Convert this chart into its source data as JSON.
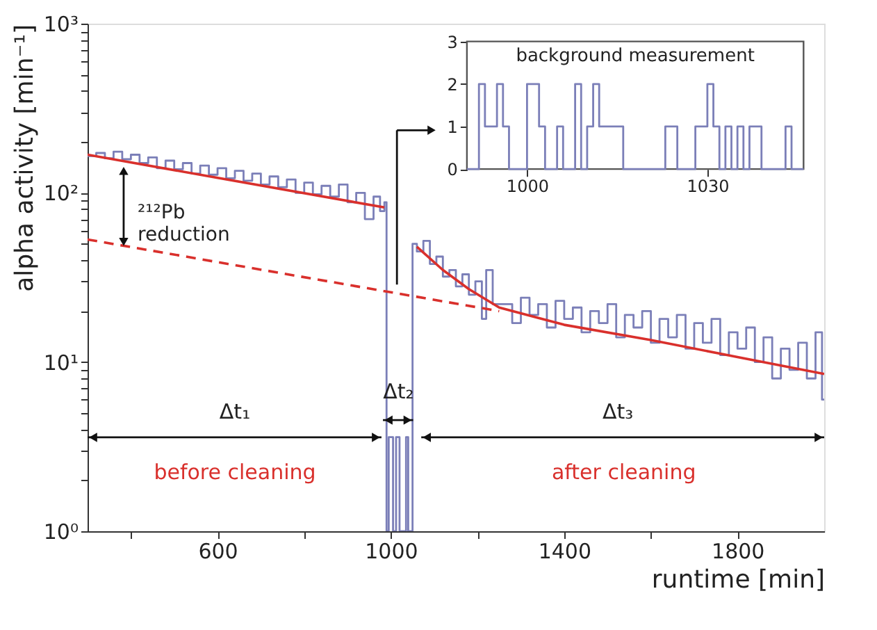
{
  "chart_data": [
    {
      "type": "step",
      "xlabel": "runtime [min]",
      "ylabel": "alpha activity [min⁻¹]",
      "log": "y",
      "grid": false,
      "legend": false,
      "xlim": [
        300,
        2000
      ],
      "xticks": [
        {
          "value": 400,
          "label": null
        },
        600,
        {
          "value": 800,
          "label": null
        },
        1000,
        {
          "value": 1200,
          "label": null
        },
        1400,
        {
          "value": 1600,
          "label": null
        },
        1800
      ],
      "ylim": [
        1,
        1000
      ],
      "yticks": [
        {
          "value": 1,
          "label": "10⁰"
        },
        {
          "value": 2,
          "label": null
        },
        {
          "value": 3,
          "label": null
        },
        {
          "value": 4,
          "label": null
        },
        {
          "value": 5,
          "label": null
        },
        {
          "value": 6,
          "label": null
        },
        {
          "value": 7,
          "label": null
        },
        {
          "value": 8,
          "label": null
        },
        {
          "value": 9,
          "label": null
        },
        {
          "value": 10,
          "label": "10¹"
        },
        {
          "value": 20,
          "label": null
        },
        {
          "value": 30,
          "label": null
        },
        {
          "value": 40,
          "label": null
        },
        {
          "value": 50,
          "label": null
        },
        {
          "value": 60,
          "label": null
        },
        {
          "value": 70,
          "label": null
        },
        {
          "value": 80,
          "label": null
        },
        {
          "value": 90,
          "label": null
        },
        {
          "value": 100,
          "label": "10²"
        },
        {
          "value": 200,
          "label": null
        },
        {
          "value": 300,
          "label": null
        },
        {
          "value": 400,
          "label": null
        },
        {
          "value": 500,
          "label": null
        },
        {
          "value": 600,
          "label": null
        },
        {
          "value": 700,
          "label": null
        },
        {
          "value": 800,
          "label": null
        },
        {
          "value": 900,
          "label": null
        },
        {
          "value": 1000,
          "label": "10³"
        }
      ],
      "series": [
        {
          "type": "step",
          "color": "#7b7fb8",
          "x": [
            300,
            320,
            340,
            360,
            380,
            400,
            420,
            440,
            460,
            480,
            500,
            520,
            540,
            560,
            580,
            600,
            620,
            640,
            660,
            680,
            700,
            720,
            740,
            760,
            780,
            800,
            820,
            840,
            860,
            880,
            900,
            920,
            940,
            960,
            975,
            985,
            990,
            995,
            1005,
            1012,
            1020,
            1035,
            1040,
            1050,
            1060,
            1075,
            1090,
            1105,
            1120,
            1135,
            1150,
            1165,
            1180,
            1195,
            1210,
            1220,
            1235,
            1260,
            1280,
            1300,
            1320,
            1340,
            1360,
            1380,
            1400,
            1420,
            1440,
            1460,
            1480,
            1500,
            1520,
            1540,
            1560,
            1580,
            1600,
            1620,
            1640,
            1660,
            1680,
            1700,
            1720,
            1740,
            1760,
            1780,
            1800,
            1820,
            1840,
            1860,
            1880,
            1900,
            1920,
            1940,
            1960,
            1980,
            1995,
            2000
          ],
          "values": [
            165,
            172,
            160,
            175,
            158,
            168,
            150,
            162,
            140,
            155,
            138,
            150,
            130,
            145,
            128,
            140,
            122,
            135,
            118,
            130,
            112,
            125,
            108,
            120,
            100,
            115,
            98,
            110,
            95,
            112,
            88,
            100,
            70,
            95,
            78,
            88,
            1,
            3.6,
            1,
            3.6,
            1,
            3.6,
            1,
            50,
            45,
            52,
            38,
            42,
            32,
            35,
            28,
            33,
            25,
            30,
            18,
            35,
            22,
            22,
            17,
            24,
            19,
            22,
            16,
            23,
            18,
            21,
            15,
            20,
            17,
            22,
            14,
            19,
            16,
            20,
            13,
            18,
            14,
            19,
            12,
            17,
            13,
            18,
            11,
            15,
            12,
            16,
            10,
            14,
            8,
            12,
            9,
            13,
            8,
            15,
            6,
            6
          ]
        },
        {
          "type": "line",
          "color": "#d9302c",
          "x": [
            300,
            985
          ],
          "values": [
            168,
            82
          ]
        },
        {
          "type": "line",
          "color": "#d9302c",
          "line_style": "dashed",
          "x": [
            300,
            1250
          ],
          "values": [
            53,
            20
          ]
        },
        {
          "type": "line",
          "color": "#d9302c",
          "x": [
            1060,
            1120,
            1180,
            1250,
            1400,
            1600,
            1800,
            2000
          ],
          "values": [
            48,
            35,
            27,
            21,
            16.6,
            13.5,
            10.7,
            8.5
          ]
        }
      ],
      "annotations": [
        "²¹²Pb reduction",
        "Δt₁",
        "Δt₂",
        "Δt₃",
        "before cleaning",
        "after cleaning"
      ]
    },
    {
      "type": "step",
      "xlim": [
        990,
        1046
      ],
      "ylim": [
        0,
        3
      ],
      "xticks": [
        1000,
        1030
      ],
      "yticks": [
        0,
        1,
        2,
        3
      ],
      "grid": false,
      "legend": false,
      "annotations": [
        "background measurement"
      ],
      "series": [
        {
          "color": "#7b7fb8",
          "x": [
            990,
            991,
            992,
            993,
            994,
            995,
            996,
            997,
            998,
            999,
            1000,
            1001,
            1002,
            1003,
            1004,
            1005,
            1006,
            1007,
            1008,
            1009,
            1010,
            1011,
            1012,
            1013,
            1014,
            1015,
            1016,
            1017,
            1018,
            1019,
            1020,
            1021,
            1022,
            1023,
            1024,
            1025,
            1026,
            1027,
            1028,
            1029,
            1030,
            1031,
            1032,
            1033,
            1034,
            1035,
            1036,
            1037,
            1038,
            1039,
            1040,
            1041,
            1042,
            1043,
            1044,
            1045,
            1046
          ],
          "values": [
            0,
            0,
            2,
            1,
            1,
            2,
            1,
            0,
            0,
            0,
            2,
            2,
            1,
            0,
            0,
            1,
            0,
            0,
            2,
            0,
            1,
            2,
            1,
            1,
            1,
            1,
            0,
            0,
            0,
            0,
            0,
            0,
            0,
            1,
            1,
            0,
            0,
            0,
            1,
            1,
            2,
            1,
            0,
            1,
            0,
            1,
            0,
            1,
            1,
            0,
            0,
            0,
            0,
            1,
            0,
            0,
            0
          ]
        }
      ]
    }
  ]
}
